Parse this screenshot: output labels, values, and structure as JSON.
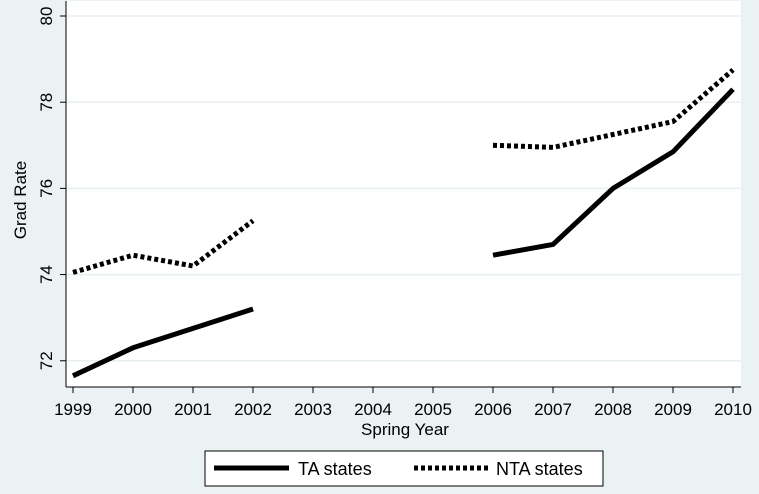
{
  "chart_data": {
    "type": "line",
    "title": "",
    "xlabel": "Spring Year",
    "ylabel": "Grad Rate",
    "x": [
      1999,
      2000,
      2001,
      2002,
      2003,
      2004,
      2005,
      2006,
      2007,
      2008,
      2009,
      2010
    ],
    "xlim": [
      1999,
      2010
    ],
    "ylim": [
      71.6,
      80
    ],
    "yticks": [
      72,
      74,
      76,
      78,
      80
    ],
    "grid": true,
    "legend_position": "bottom",
    "series": [
      {
        "name": "TA states",
        "style": "solid",
        "color": "#000000",
        "values": [
          71.65,
          72.3,
          72.75,
          73.2,
          null,
          null,
          null,
          74.45,
          74.7,
          76.0,
          76.85,
          78.3
        ]
      },
      {
        "name": "NTA states",
        "style": "dotted",
        "color": "#000000",
        "values": [
          74.05,
          74.45,
          74.2,
          75.25,
          null,
          null,
          null,
          77.0,
          76.95,
          77.25,
          77.55,
          78.75
        ]
      }
    ]
  }
}
